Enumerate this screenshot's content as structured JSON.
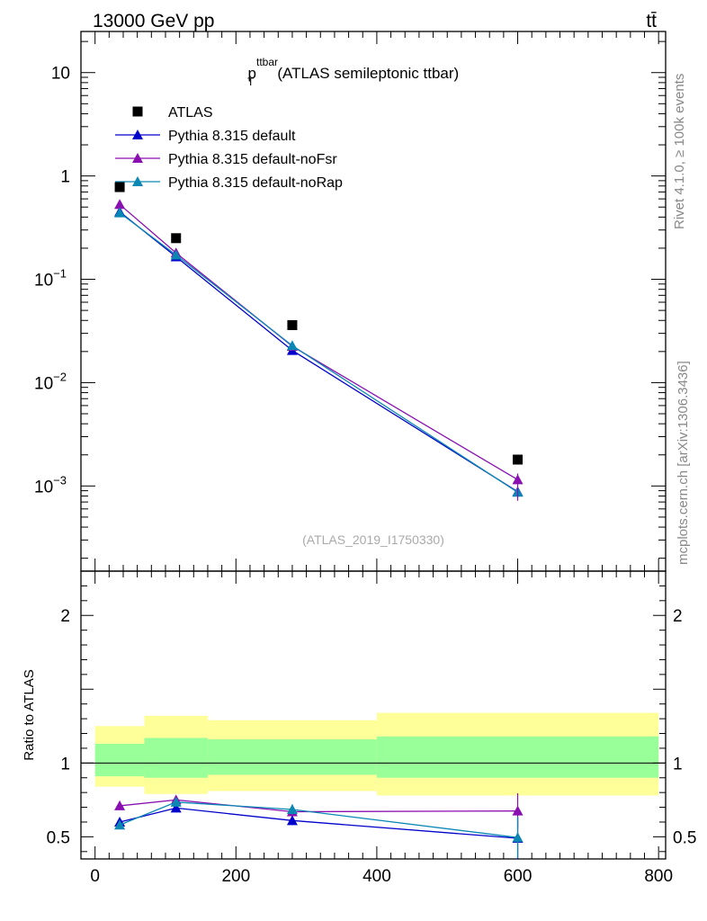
{
  "header": {
    "energy_label": "13000 GeV pp",
    "process_label": "tt̄"
  },
  "side": {
    "rivet_label": "Rivet 4.1.0, ≥ 100k events",
    "source_label": "mcplots.cern.ch [arXiv:1306.3436]"
  },
  "analysis_label": "(ATLAS_2019_I1750330)",
  "colors": {
    "data": "#000000",
    "default": "#0000cc",
    "noFsr": "#8a0fb0",
    "noRap": "#0a87b3",
    "band_outer": "#ffff99",
    "band_inner": "#99ff99"
  },
  "chart_data": [
    {
      "type": "scatter",
      "panel": "main",
      "title": "p_T^ttbar (ATLAS semileptonic ttbar)",
      "title_main": "p",
      "title_sub": "T",
      "title_sup": "ttbar",
      "title_rest": "(ATLAS semileptonic ttbar)",
      "xlabel": "",
      "ylabel": "",
      "yscale": "log",
      "xlim": [
        -20,
        810
      ],
      "ylim": [
        0.00015,
        25
      ],
      "y_ticks": [
        {
          "value": 10,
          "label": "10"
        },
        {
          "value": 1,
          "label": "1"
        },
        {
          "value": 0.1,
          "label": "10",
          "exp": "−1"
        },
        {
          "value": 0.01,
          "label": "10",
          "exp": "−2"
        },
        {
          "value": 0.001,
          "label": "10",
          "exp": "−3"
        }
      ],
      "x": [
        35,
        115,
        280,
        600
      ],
      "series": [
        {
          "name": "ATLAS",
          "key": "data",
          "marker": "square",
          "values": [
            0.78,
            0.25,
            0.036,
            0.0018
          ]
        },
        {
          "name": "Pythia 8.315 default",
          "key": "default",
          "marker": "triangle",
          "values": [
            0.45,
            0.165,
            0.0205,
            0.00088
          ]
        },
        {
          "name": "Pythia 8.315 default-noFsr",
          "key": "noFsr",
          "marker": "triangle",
          "values": [
            0.53,
            0.18,
            0.0225,
            0.00115
          ]
        },
        {
          "name": "Pythia 8.315 default-noRap",
          "key": "noRap",
          "marker": "triangle",
          "values": [
            0.44,
            0.172,
            0.0228,
            0.00087
          ]
        }
      ],
      "legend": "top-left"
    },
    {
      "type": "scatter",
      "panel": "ratio",
      "ylabel": "Ratio to ATLAS",
      "xlim": [
        -20,
        810
      ],
      "ylim": [
        0.35,
        2.3
      ],
      "y_ticks": [
        {
          "value": 2,
          "label": "2"
        },
        {
          "value": 1,
          "label": "1"
        },
        {
          "value": 0.5,
          "label": "0.5"
        }
      ],
      "x_ticks": [
        {
          "value": 0,
          "label": "0"
        },
        {
          "value": 200,
          "label": "200"
        },
        {
          "value": 400,
          "label": "400"
        },
        {
          "value": 600,
          "label": "600"
        },
        {
          "value": 800,
          "label": "800"
        }
      ],
      "bins": [
        [
          0,
          70
        ],
        [
          70,
          160
        ],
        [
          160,
          400
        ],
        [
          400,
          800
        ]
      ],
      "band_outer": [
        [
          0.84,
          1.25
        ],
        [
          0.79,
          1.32
        ],
        [
          0.81,
          1.29
        ],
        [
          0.78,
          1.34
        ]
      ],
      "band_inner": [
        [
          0.91,
          1.13
        ],
        [
          0.9,
          1.17
        ],
        [
          0.92,
          1.16
        ],
        [
          0.9,
          1.18
        ]
      ],
      "x": [
        35,
        115,
        280,
        600
      ],
      "series": [
        {
          "name": "Pythia 8.315 default",
          "key": "default",
          "values": [
            0.6,
            0.695,
            0.61,
            0.49
          ],
          "err": [
            0.01,
            0.015,
            0.03,
            0.14
          ]
        },
        {
          "name": "Pythia 8.315 default-noFsr",
          "key": "noFsr",
          "values": [
            0.71,
            0.75,
            0.67,
            0.675
          ],
          "err": [
            0.01,
            0.015,
            0.03,
            0.12
          ]
        },
        {
          "name": "Pythia 8.315 default-noRap",
          "key": "noRap",
          "values": [
            0.58,
            0.735,
            0.685,
            0.495
          ],
          "err": [
            0.01,
            0.02,
            0.035,
            0.14
          ]
        }
      ]
    }
  ]
}
